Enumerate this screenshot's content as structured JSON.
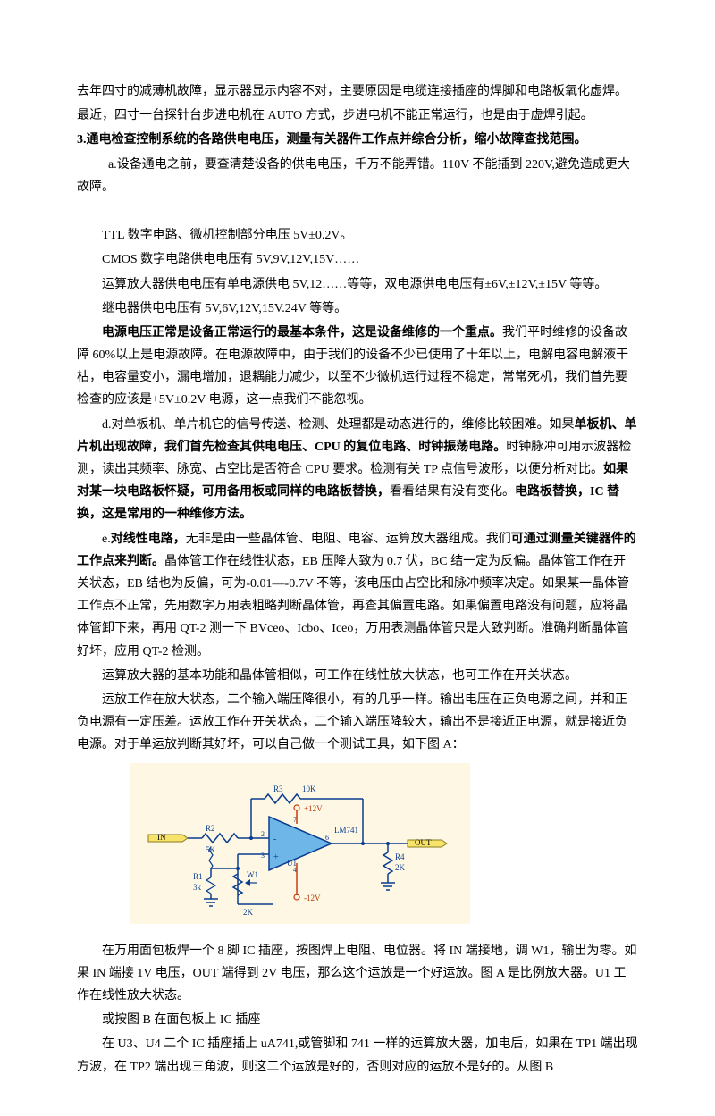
{
  "paragraphs": [
    {
      "cls": "para",
      "runs": [
        {
          "t": "去年四寸的减薄机故障，显示器显示内容不对，主要原因是电缆连接插座的焊脚和电路板氧化虚焊。"
        }
      ]
    },
    {
      "cls": "para",
      "runs": [
        {
          "t": "最近，四寸一台探针台步进电机在 AUTO 方式，步进电机不能正常运行，也是由于虚焊引起。"
        }
      ]
    },
    {
      "cls": "para",
      "runs": [
        {
          "t": "3.通电检查控制系统的各路供电电压，测量有关器件工作点并综合分析，缩小故障查找范围。",
          "b": true
        }
      ]
    },
    {
      "cls": "para indent2",
      "runs": [
        {
          "t": "a.设备通电之前，要查清楚设备的供电电压，千万不能弄错。110V 不能插到 220V,避免造成更大故障。"
        }
      ]
    },
    {
      "cls": "para",
      "runs": [
        {
          "t": " "
        }
      ]
    },
    {
      "cls": "para indent1",
      "runs": [
        {
          "t": "TTL 数字电路、微机控制部分电压 5V±0.2V。"
        }
      ]
    },
    {
      "cls": "para indent1",
      "runs": [
        {
          "t": "CMOS 数字电路供电电压有 5V,9V,12V,15V……"
        }
      ]
    },
    {
      "cls": "para indent1",
      "runs": [
        {
          "t": "运算放大器供电电压有单电源供电 5V,12……等等，双电源供电电压有±6V,±12V,±15V 等等。"
        }
      ]
    },
    {
      "cls": "para indent1",
      "runs": [
        {
          "t": "继电器供电电压有 5V,6V,12V,15V.24V 等等。"
        }
      ]
    },
    {
      "cls": "para indent1",
      "runs": [
        {
          "t": "电源电压正常是设备正常运行的最基本条件，这是设备维修的一个重点。",
          "b": true
        },
        {
          "t": "我们平时维修的设备故障 60%以上是电源故障。在电源故障中，由于我们的设备不少已使用了十年以上，电解电容电解液干枯，电容量变小，漏电增加，退耦能力减少，以至不少微机运行过程不稳定，常常死机，我们首先要检查的应该是+5V±0.2V 电源，这一点我们不能忽视。"
        }
      ]
    },
    {
      "cls": "para indent1",
      "runs": [
        {
          "t": "d.对单板机、单片机它的信号传送、检测、处理都是动态进行的，维修比较困难。如果"
        },
        {
          "t": "单板机、单片机出现故障，我们首先检查其供电电压、CPU 的复位电路、时钟振荡电路。",
          "b": true
        },
        {
          "t": "时钟脉冲可用示波器检测，读出其频率、脉宽、占空比是否符合 CPU 要求。检测有关 TP 点信号波形，以便分析对比。"
        },
        {
          "t": "如果对某一块电路板怀疑，可用备用板或同样的电路板替换，",
          "b": true
        },
        {
          "t": "看看结果有没有变化。"
        },
        {
          "t": "电路板替换，IC 替换，这是常用的一种维修方法。",
          "b": true
        }
      ]
    },
    {
      "cls": "para indent1",
      "runs": [
        {
          "t": "e."
        },
        {
          "t": "对线性电路，",
          "b": true
        },
        {
          "t": "无非是由一些晶体管、电阻、电容、运算放大器组成。我们"
        },
        {
          "t": "可通过测量关键器件的工作点来判断。",
          "b": true
        },
        {
          "t": "晶体管工作在线性状态，EB 压降大致为 0.7 伏，BC 结一定为反偏。晶体管工作在开关状态，EB 结也为反偏，可为-0.01—-0.7V 不等，该电压由占空比和脉冲频率决定。如果某一晶体管工作点不正常，先用数字万用表粗略判断晶体管，再查其偏置电路。如果偏置电路没有问题，应将晶体管卸下来，再用 QT-2 测一下 BVceo、Icbo、Iceo，万用表测晶体管只是大致判断。准确判断晶体管好坏，应用 QT-2 检测。"
        }
      ]
    },
    {
      "cls": "para indent1",
      "runs": [
        {
          "t": "运算放大器的基本功能和晶体管相似，可工作在线性放大状态，也可工作在开关状态。"
        }
      ]
    },
    {
      "cls": "para indent1",
      "runs": [
        {
          "t": "运放工作在放大状态，二个输入端压降很小，有的几乎一样。输出电压在正负电源之间，并和正负电源有一定压差。运放工作在开关状态，二个输入端压降较大，输出不是接近正电源，就是接近负电源。对于单运放判断其好坏，可以自己做一个测试工具，如下图 A："
        }
      ]
    }
  ],
  "paragraphs_after": [
    {
      "cls": "para indent1",
      "runs": [
        {
          "t": "在万用面包板焊一个 8 脚 IC 插座，按图焊上电阻、电位器。将 IN 端接地，调 W1，输出为零。如果 IN 端接 1V 电压，OUT 端得到 2V 电压，那么这个运放是一个好运放。图 A 是比例放大器。U1 工作在线性放大状态。"
        }
      ]
    },
    {
      "cls": "para indent1",
      "runs": [
        {
          "t": "或按图 B 在面包板上 IC 插座"
        }
      ]
    },
    {
      "cls": "para indent1",
      "runs": [
        {
          "t": "在 U3、U4 二个 IC 插座插上 uA741,或管脚和 741 一样的运算放大器，加电后，如果在 TP1 端出现方波，在 TP2 端出现三角波，则这二个运放是好的，否则对应的运放不是好的。从图 B"
        }
      ]
    }
  ],
  "diagram": {
    "bg": "#fdf7e4",
    "opamp_fill": "#6fb6e8",
    "wire_color": "#0a3d8f",
    "red_stroke": "#c93d10",
    "text_color": "#0a3d8f",
    "red_text": "#b53a0a",
    "labels": {
      "R3": "R3",
      "R3v": "10K",
      "p12v": "+12V",
      "IN": "IN",
      "R2": "R2",
      "R2v": "5K",
      "p2": "2",
      "p3": "3",
      "p7": "7",
      "p6": "6",
      "p4": "4",
      "LM": "LM741",
      "U1": "U1",
      "m12v": "-12V",
      "OUT": "OUT",
      "R1": "R1",
      "R1v": "3k",
      "W1": "W1",
      "W1v": "2K",
      "R4": "R4",
      "R4v": "2K",
      "plus": "+",
      "minus": "-"
    }
  }
}
